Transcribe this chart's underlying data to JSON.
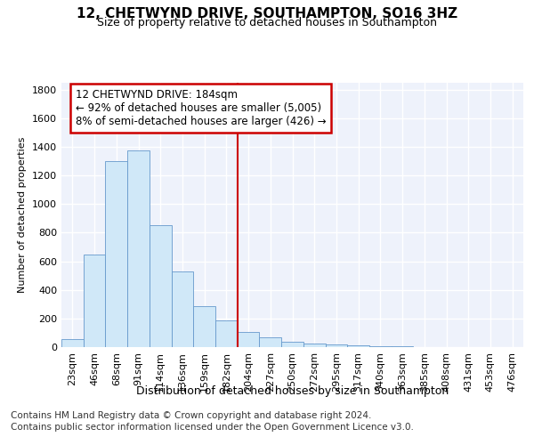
{
  "title": "12, CHETWYND DRIVE, SOUTHAMPTON, SO16 3HZ",
  "subtitle": "Size of property relative to detached houses in Southampton",
  "xlabel": "Distribution of detached houses by size in Southampton",
  "ylabel": "Number of detached properties",
  "categories": [
    "23sqm",
    "46sqm",
    "68sqm",
    "91sqm",
    "114sqm",
    "136sqm",
    "159sqm",
    "182sqm",
    "204sqm",
    "227sqm",
    "250sqm",
    "272sqm",
    "295sqm",
    "317sqm",
    "340sqm",
    "363sqm",
    "385sqm",
    "408sqm",
    "431sqm",
    "453sqm",
    "476sqm"
  ],
  "values": [
    55,
    645,
    1300,
    1375,
    850,
    530,
    285,
    185,
    105,
    70,
    35,
    25,
    20,
    10,
    5,
    4,
    2,
    2,
    1,
    1,
    1
  ],
  "bar_color": "#d0e8f8",
  "bar_edge_color": "#6699cc",
  "background_color": "#eef2fb",
  "grid_color": "#ffffff",
  "annotation_line_color": "#cc0000",
  "annotation_box_text": "12 CHETWYND DRIVE: 184sqm\n← 92% of detached houses are smaller (5,005)\n8% of semi-detached houses are larger (426) →",
  "annotation_box_color": "#ffffff",
  "annotation_box_edge_color": "#cc0000",
  "footer_line1": "Contains HM Land Registry data © Crown copyright and database right 2024.",
  "footer_line2": "Contains public sector information licensed under the Open Government Licence v3.0.",
  "ylim": [
    0,
    1850
  ],
  "yticks": [
    0,
    200,
    400,
    600,
    800,
    1000,
    1200,
    1400,
    1600,
    1800
  ],
  "title_fontsize": 11,
  "subtitle_fontsize": 9,
  "xlabel_fontsize": 9,
  "ylabel_fontsize": 8,
  "tick_fontsize": 8,
  "footer_fontsize": 7.5
}
